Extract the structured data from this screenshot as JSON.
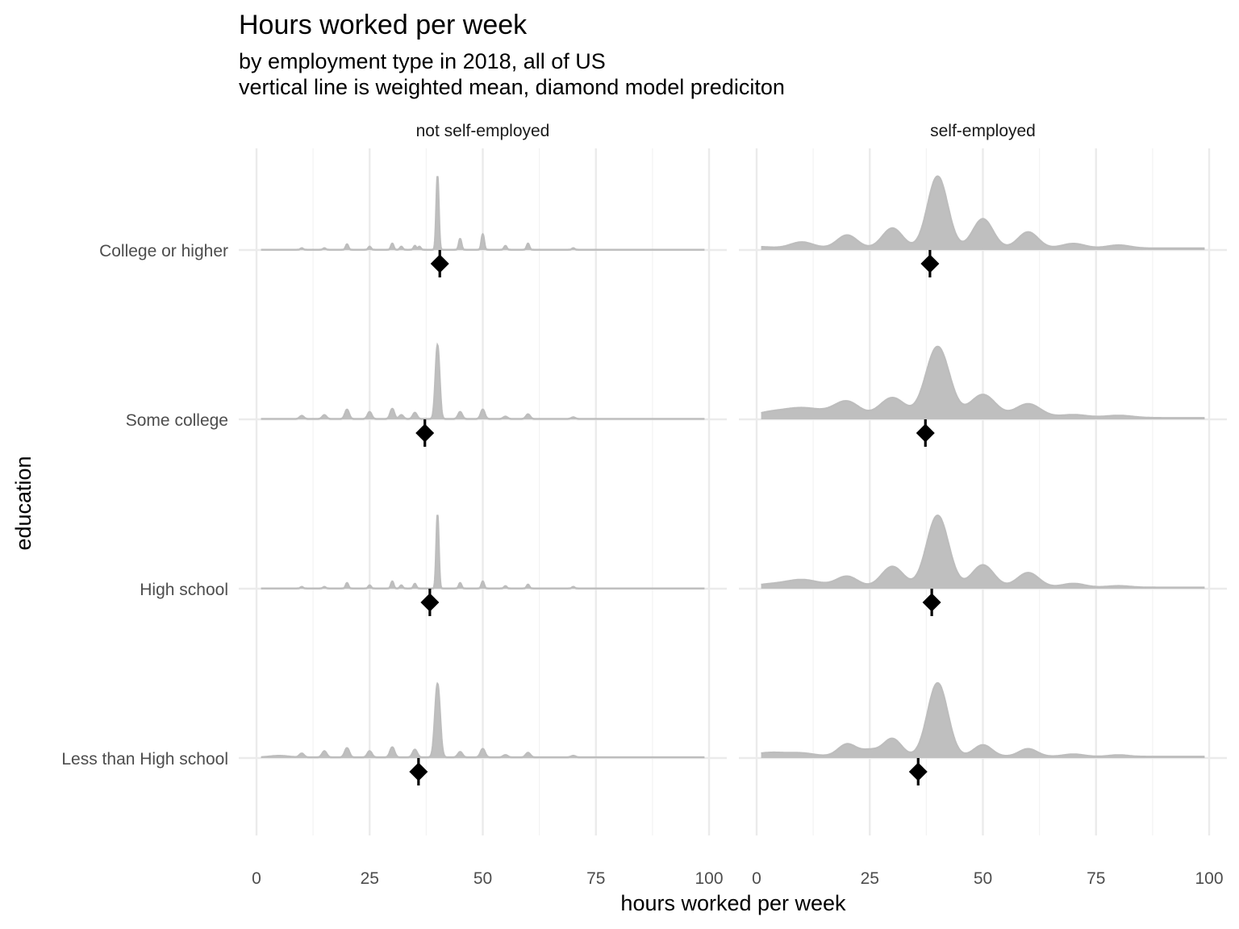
{
  "chart_data": {
    "type": "area",
    "subtype": "ridgeline density, faceted",
    "title": "Hours worked per week",
    "subtitle_lines": [
      "by employment type in 2018, all of US",
      "vertical line is weighted mean, diamond model prediciton"
    ],
    "xlabel": "hours worked per week",
    "ylabel": "education",
    "xlim": [
      0,
      100
    ],
    "x_ticks": [
      0,
      25,
      50,
      75,
      100
    ],
    "x_tick_labels": [
      "0",
      "25",
      "50",
      "75",
      "100"
    ],
    "categories": [
      "College or higher",
      "Some college",
      "High school",
      "Less than High school"
    ],
    "grid": true,
    "fill_color": "#bfbfbf",
    "marker_color": "#000000",
    "facets": [
      {
        "label": "not self-employed",
        "weighted_mean": {
          "College or higher": 40.5,
          "Some college": 37.2,
          "High school": 38.3,
          "Less than High school": 35.8
        },
        "model_prediction": {
          "College or higher": 40.5,
          "Some college": 37.2,
          "High school": 38.3,
          "Less than High school": 35.8
        },
        "density_peaks": {
          "College or higher": {
            "baseline": 0.012,
            "peaks": [
              [
                10,
                0.02,
                0.3
              ],
              [
                15,
                0.02,
                0.3
              ],
              [
                20,
                0.07,
                0.3
              ],
              [
                25,
                0.04,
                0.3
              ],
              [
                30,
                0.08,
                0.3
              ],
              [
                32,
                0.04,
                0.3
              ],
              [
                35,
                0.05,
                0.3
              ],
              [
                36,
                0.04,
                0.3
              ],
              [
                40,
                0.95,
                0.28
              ],
              [
                45,
                0.14,
                0.3
              ],
              [
                50,
                0.2,
                0.3
              ],
              [
                55,
                0.05,
                0.3
              ],
              [
                60,
                0.08,
                0.3
              ],
              [
                70,
                0.02,
                0.3
              ]
            ]
          },
          "Some college": {
            "baseline": 0.02,
            "peaks": [
              [
                10,
                0.04,
                0.45
              ],
              [
                15,
                0.05,
                0.45
              ],
              [
                20,
                0.12,
                0.45
              ],
              [
                25,
                0.09,
                0.45
              ],
              [
                30,
                0.13,
                0.45
              ],
              [
                32,
                0.05,
                0.45
              ],
              [
                35,
                0.08,
                0.45
              ],
              [
                40,
                0.95,
                0.45
              ],
              [
                45,
                0.09,
                0.45
              ],
              [
                50,
                0.12,
                0.45
              ],
              [
                55,
                0.03,
                0.45
              ],
              [
                60,
                0.06,
                0.45
              ],
              [
                70,
                0.02,
                0.45
              ]
            ]
          },
          "High school": {
            "baseline": 0.012,
            "peaks": [
              [
                10,
                0.02,
                0.3
              ],
              [
                15,
                0.02,
                0.3
              ],
              [
                20,
                0.07,
                0.3
              ],
              [
                25,
                0.04,
                0.3
              ],
              [
                30,
                0.09,
                0.3
              ],
              [
                32,
                0.04,
                0.3
              ],
              [
                35,
                0.06,
                0.3
              ],
              [
                40,
                0.95,
                0.28
              ],
              [
                45,
                0.07,
                0.3
              ],
              [
                50,
                0.09,
                0.3
              ],
              [
                55,
                0.03,
                0.3
              ],
              [
                60,
                0.05,
                0.3
              ],
              [
                70,
                0.02,
                0.3
              ]
            ]
          },
          "Less than High school": {
            "baseline": 0.03,
            "peaks": [
              [
                5,
                0.02,
                2.0
              ],
              [
                10,
                0.05,
                0.5
              ],
              [
                15,
                0.08,
                0.5
              ],
              [
                20,
                0.12,
                0.5
              ],
              [
                25,
                0.08,
                0.5
              ],
              [
                30,
                0.13,
                0.5
              ],
              [
                35,
                0.1,
                0.5
              ],
              [
                40,
                0.95,
                0.55
              ],
              [
                45,
                0.07,
                0.5
              ],
              [
                50,
                0.11,
                0.5
              ],
              [
                55,
                0.03,
                0.5
              ],
              [
                60,
                0.06,
                0.5
              ],
              [
                70,
                0.02,
                0.5
              ]
            ]
          }
        }
      },
      {
        "label": "self-employed",
        "weighted_mean": {
          "College or higher": 38.3,
          "Some college": 37.3,
          "High school": 38.7,
          "Less than High school": 35.7
        },
        "model_prediction": {
          "College or higher": 38.3,
          "Some college": 37.3,
          "High school": 38.7,
          "Less than High school": 35.7
        },
        "density_peaks": {
          "College or higher": {
            "baseline": 0.07,
            "peaks": [
              [
                0,
                0.02,
                3
              ],
              [
                10,
                0.08,
                2.5
              ],
              [
                20,
                0.17,
                2.2
              ],
              [
                30,
                0.26,
                2.2
              ],
              [
                40,
                0.93,
                2.2
              ],
              [
                50,
                0.38,
                2.2
              ],
              [
                60,
                0.21,
                2.2
              ],
              [
                70,
                0.06,
                2.5
              ],
              [
                80,
                0.04,
                2.5
              ]
            ]
          },
          "Some college": {
            "baseline": 0.06,
            "peaks": [
              [
                2,
                0.04,
                3
              ],
              [
                10,
                0.13,
                5
              ],
              [
                20,
                0.2,
                2.8
              ],
              [
                30,
                0.26,
                2.8
              ],
              [
                40,
                0.92,
                2.6
              ],
              [
                50,
                0.3,
                2.8
              ],
              [
                60,
                0.18,
                2.8
              ],
              [
                70,
                0.04,
                3
              ],
              [
                80,
                0.03,
                3
              ]
            ]
          },
          "High school": {
            "baseline": 0.05,
            "peaks": [
              [
                2,
                0.03,
                3
              ],
              [
                10,
                0.1,
                4
              ],
              [
                20,
                0.14,
                2.4
              ],
              [
                30,
                0.27,
                2.4
              ],
              [
                40,
                0.93,
                2.4
              ],
              [
                50,
                0.29,
                2.4
              ],
              [
                60,
                0.19,
                2.4
              ],
              [
                70,
                0.05,
                2.5
              ],
              [
                80,
                0.02,
                2.5
              ]
            ]
          },
          "Less than High school": {
            "baseline": 0.06,
            "peaks": [
              [
                3,
                0.05,
                3.5
              ],
              [
                10,
                0.04,
                3
              ],
              [
                20,
                0.16,
                2
              ],
              [
                25,
                0.08,
                2
              ],
              [
                30,
                0.23,
                2
              ],
              [
                40,
                0.95,
                2.2
              ],
              [
                50,
                0.15,
                2
              ],
              [
                60,
                0.1,
                2
              ],
              [
                70,
                0.03,
                2.2
              ],
              [
                80,
                0.02,
                2
              ]
            ]
          }
        }
      }
    ]
  }
}
